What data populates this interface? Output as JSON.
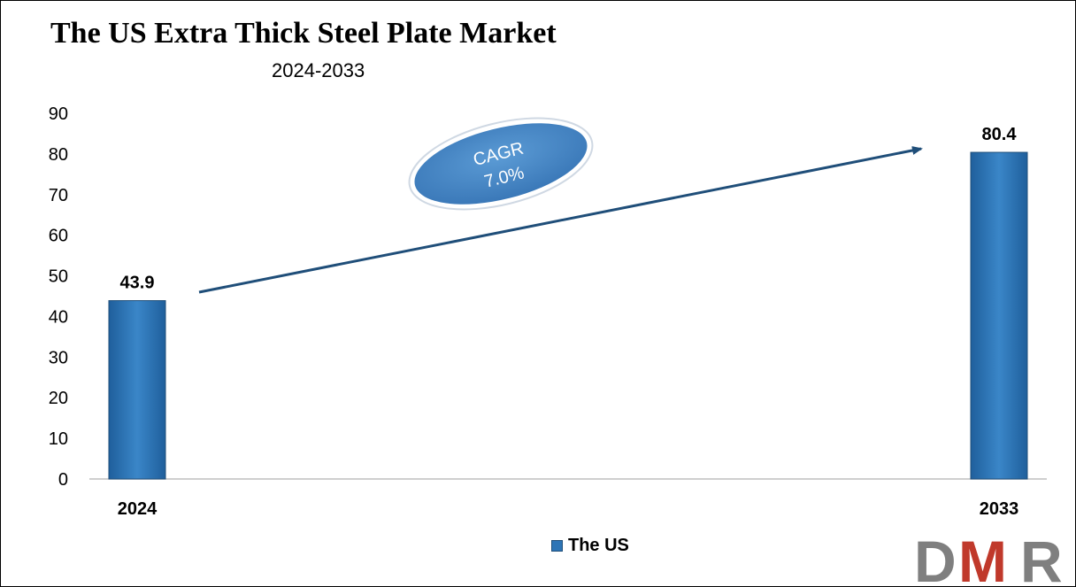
{
  "chart_data": {
    "type": "bar",
    "title": "The US Extra Thick Steel Plate Market",
    "subtitle": "2024-2033",
    "categories": [
      "2024",
      "2033"
    ],
    "series": [
      {
        "name": "The US",
        "values": [
          43.9,
          80.4
        ]
      }
    ],
    "data_labels": [
      "43.9",
      "80.4"
    ],
    "ylim": [
      0,
      90
    ],
    "y_ticks": [
      0,
      10,
      20,
      30,
      40,
      50,
      60,
      70,
      80,
      90
    ],
    "grid": false,
    "legend_position": "bottom",
    "annotation": {
      "line1": "CAGR",
      "line2": "7.0%"
    },
    "bar_color": "#2e75b6"
  },
  "logo": {
    "text": "DMR"
  }
}
